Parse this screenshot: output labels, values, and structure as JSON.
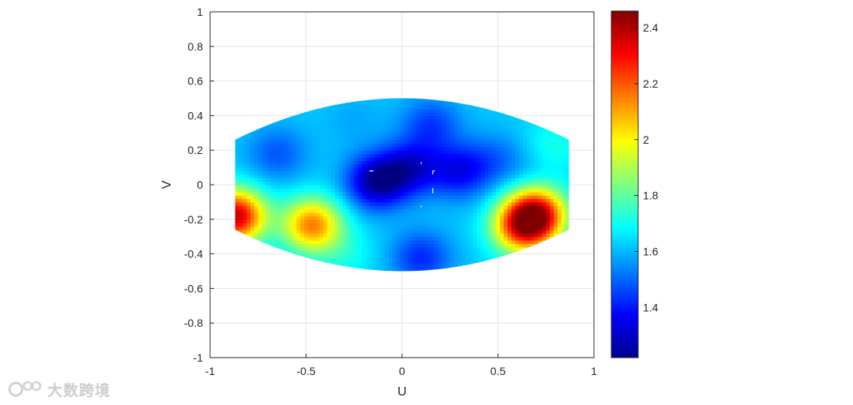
{
  "chart_data": {
    "type": "heatmap",
    "xlabel": "U",
    "ylabel": "V",
    "xlim": [
      -1,
      1
    ],
    "ylim": [
      -1,
      1
    ],
    "xticks": [
      "-1",
      "-0.5",
      "0",
      "0.5",
      "1"
    ],
    "yticks": [
      "1",
      "0.8",
      "0.6",
      "0.4",
      "0.2",
      "0",
      "-0.2",
      "-0.4",
      "-0.6",
      "-0.8",
      "-1"
    ],
    "grid": true,
    "colormap": "jet",
    "colorbar": {
      "range": [
        1.22,
        2.46
      ],
      "ticks": [
        "2.4",
        "2.2",
        "2",
        "1.8",
        "1.6",
        "1.4"
      ]
    },
    "baseline_value": 1.62,
    "features": [
      {
        "u": 0.7,
        "v": -0.17,
        "value": 2.32
      },
      {
        "u": 0.62,
        "v": -0.25,
        "value": 2.1
      },
      {
        "u": -0.47,
        "v": -0.23,
        "value": 2.15
      },
      {
        "u": -0.87,
        "v": -0.18,
        "value": 2.38
      },
      {
        "u": -0.13,
        "v": 0.02,
        "value": 1.25
      },
      {
        "u": 0.05,
        "v": 0.1,
        "value": 1.36
      },
      {
        "u": 0.3,
        "v": 0.08,
        "value": 1.38
      },
      {
        "u": 0.15,
        "v": 0.35,
        "value": 1.45
      },
      {
        "u": 0.1,
        "v": -0.42,
        "value": 1.42
      },
      {
        "u": -0.65,
        "v": 0.18,
        "value": 1.48
      },
      {
        "u": -0.25,
        "v": 0.38,
        "value": 1.58
      },
      {
        "u": 0.48,
        "v": 0.15,
        "value": 1.52
      },
      {
        "u": 0.65,
        "v": 0.12,
        "value": 1.58
      },
      {
        "u": -0.3,
        "v": -0.4,
        "value": 1.7
      },
      {
        "u": 0.78,
        "v": 0.22,
        "value": 1.72
      }
    ],
    "domain_shape": {
      "u_range": [
        -0.87,
        0.87
      ],
      "edge_v_top": 0.26,
      "center_v_top": 0.5,
      "edge_v_bottom": -0.26,
      "center_v_bottom": -0.5
    }
  },
  "watermark": {
    "text": "大数跨境"
  }
}
